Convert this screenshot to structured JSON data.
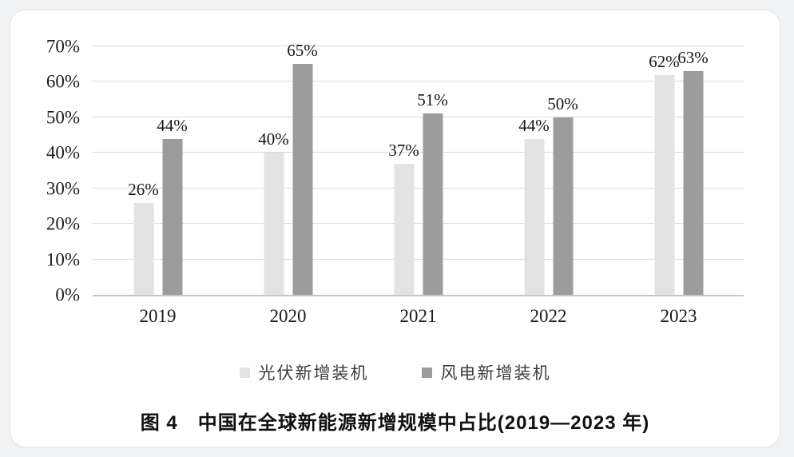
{
  "chart_data": {
    "type": "bar",
    "title": "图 4　中国在全球新能源新增规模中占比(2019—2023 年)",
    "categories": [
      "2019",
      "2020",
      "2021",
      "2022",
      "2023"
    ],
    "series": [
      {
        "name": "光伏新增装机",
        "color": "#e3e3e3",
        "values": [
          26,
          40,
          37,
          44,
          62
        ],
        "value_labels": [
          "26%",
          "40%",
          "37%",
          "44%",
          "62%"
        ]
      },
      {
        "name": "风电新增装机",
        "color": "#9c9c9c",
        "values": [
          44,
          65,
          51,
          50,
          63
        ],
        "value_labels": [
          "44%",
          "65%",
          "51%",
          "50%",
          "63%"
        ]
      }
    ],
    "ylim": [
      0,
      70
    ],
    "ytick_step": 10,
    "ytick_labels": [
      "0%",
      "10%",
      "20%",
      "30%",
      "40%",
      "50%",
      "60%",
      "70%"
    ],
    "grid": true,
    "legend_position": "bottom",
    "colors": {
      "gridline": "#d9d9d9",
      "axis_line": "#c6c6c6",
      "text": "#1c1c1c"
    }
  }
}
